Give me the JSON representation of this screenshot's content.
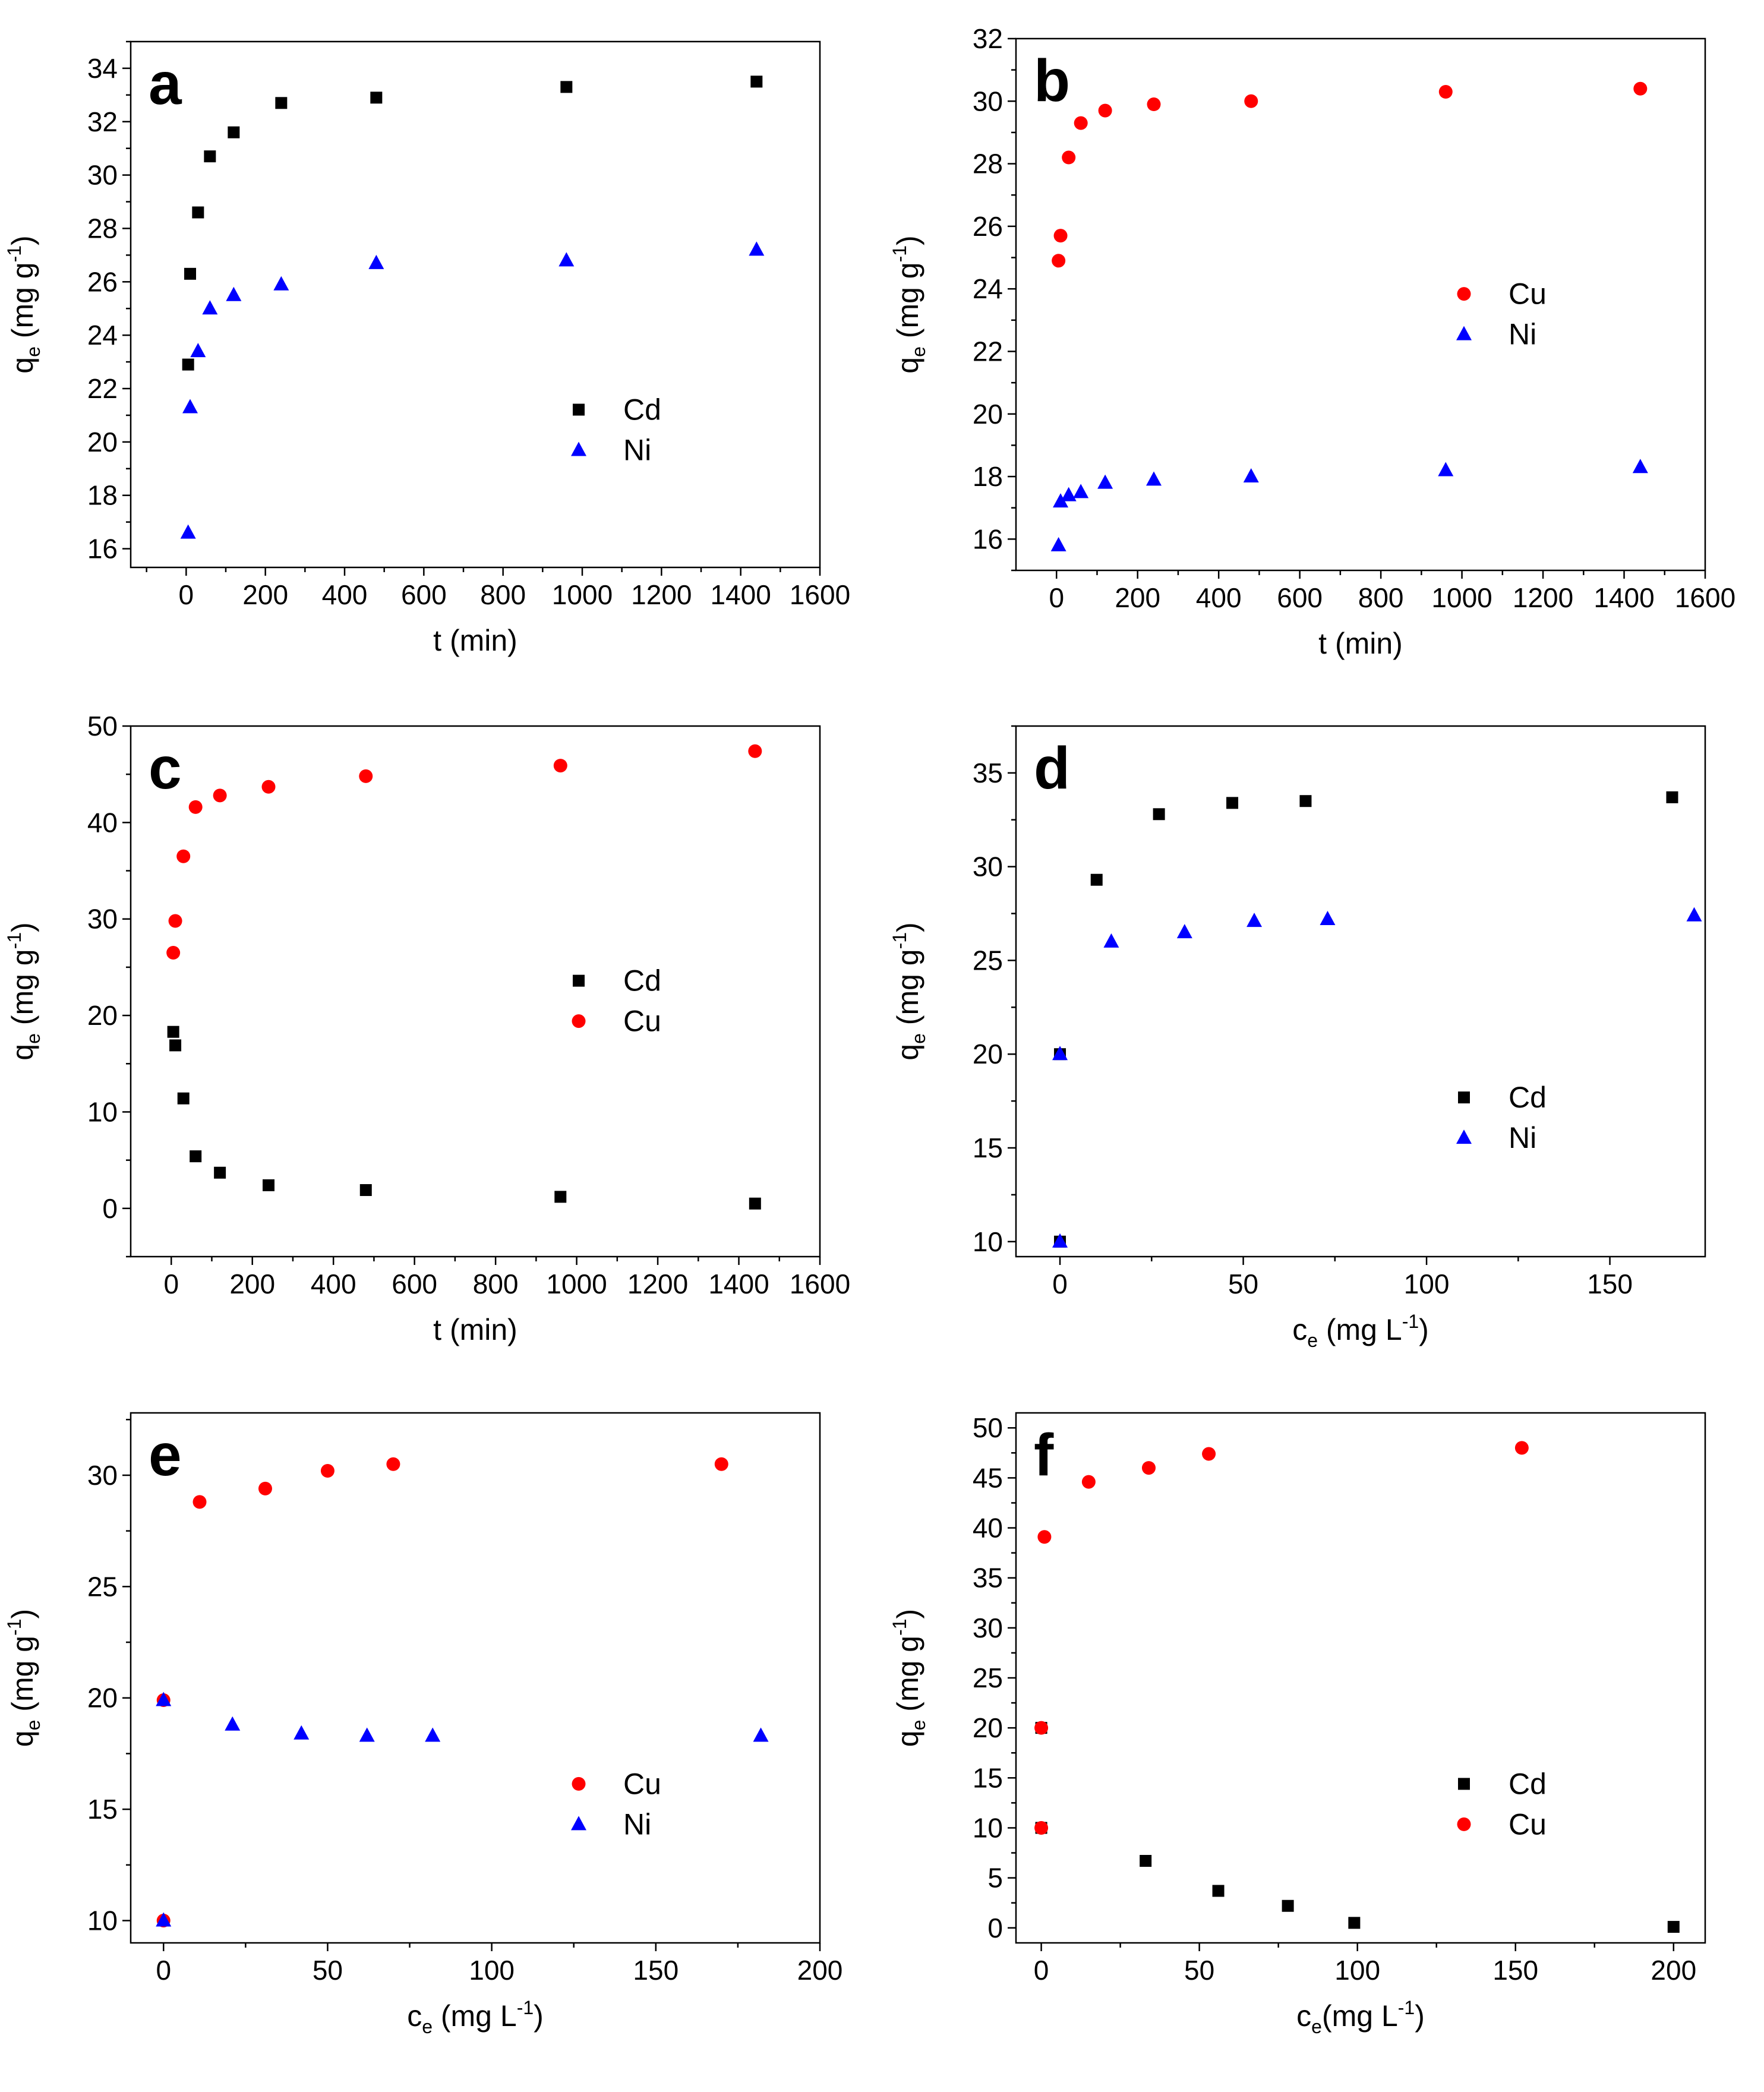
{
  "figure": {
    "colors": {
      "Cd": "#000000",
      "Ni": "#0000ff",
      "Cu": "#ff0000"
    }
  },
  "chart_data": [
    {
      "id": "a",
      "letter": "a",
      "type": "scatter",
      "xlabel": {
        "main": "t (min)",
        "sub": "",
        "suffix": "",
        "sup": "",
        "close": ""
      },
      "ylabel": {
        "main": "q",
        "sub": "e",
        "suffix": " (mg g",
        "sup": "-1",
        "close": ")"
      },
      "xlim": [
        -140,
        1600
      ],
      "ylim": [
        15.3,
        35
      ],
      "xticks": [
        0,
        200,
        400,
        600,
        800,
        1000,
        1200,
        1400,
        1600
      ],
      "yticks": [
        16,
        18,
        20,
        22,
        24,
        26,
        28,
        30,
        32,
        34
      ],
      "grid": false,
      "legend_position": "lower-right",
      "series": [
        {
          "name": "Cd",
          "marker": "square",
          "color": "#000000",
          "points": [
            [
              5,
              22.9
            ],
            [
              10,
              26.3
            ],
            [
              30,
              28.6
            ],
            [
              60,
              30.7
            ],
            [
              120,
              31.6
            ],
            [
              240,
              32.7
            ],
            [
              480,
              32.9
            ],
            [
              960,
              33.3
            ],
            [
              1440,
              33.5
            ]
          ]
        },
        {
          "name": "Ni",
          "marker": "triangle",
          "color": "#0000ff",
          "points": [
            [
              5,
              16.6
            ],
            [
              10,
              21.3
            ],
            [
              30,
              23.4
            ],
            [
              60,
              25.0
            ],
            [
              120,
              25.5
            ],
            [
              240,
              25.9
            ],
            [
              480,
              26.7
            ],
            [
              960,
              26.8
            ],
            [
              1440,
              27.2
            ]
          ]
        }
      ]
    },
    {
      "id": "b",
      "letter": "b",
      "type": "scatter",
      "xlabel": {
        "main": "t (min)",
        "sub": "",
        "suffix": "",
        "sup": "",
        "close": ""
      },
      "ylabel": {
        "main": "q",
        "sub": "e",
        "suffix": " (mg g",
        "sup": "-1",
        "close": ")"
      },
      "xlim": [
        -100,
        1600
      ],
      "ylim": [
        15.0,
        32.0
      ],
      "xticks": [
        0,
        200,
        400,
        600,
        800,
        1000,
        1200,
        1400,
        1600
      ],
      "yticks": [
        16,
        18,
        20,
        22,
        24,
        26,
        28,
        30,
        32
      ],
      "grid": false,
      "legend_position": "middle-right",
      "series": [
        {
          "name": "Cu",
          "marker": "circle",
          "color": "#ff0000",
          "points": [
            [
              5,
              24.9
            ],
            [
              10,
              25.7
            ],
            [
              30,
              28.2
            ],
            [
              60,
              29.3
            ],
            [
              120,
              29.7
            ],
            [
              240,
              29.9
            ],
            [
              480,
              30.0
            ],
            [
              960,
              30.3
            ],
            [
              1440,
              30.4
            ]
          ]
        },
        {
          "name": "Ni",
          "marker": "triangle",
          "color": "#0000ff",
          "points": [
            [
              5,
              15.8
            ],
            [
              10,
              17.2
            ],
            [
              30,
              17.4
            ],
            [
              60,
              17.5
            ],
            [
              120,
              17.8
            ],
            [
              240,
              17.9
            ],
            [
              480,
              18.0
            ],
            [
              960,
              18.2
            ],
            [
              1440,
              18.3
            ]
          ]
        }
      ]
    },
    {
      "id": "c",
      "letter": "c",
      "type": "scatter",
      "xlabel": {
        "main": "t (min)",
        "sub": "",
        "suffix": "",
        "sup": "",
        "close": ""
      },
      "ylabel": {
        "main": "q",
        "sub": "e",
        "suffix": " (mg g",
        "sup": "-1",
        "close": ")"
      },
      "xlim": [
        -100,
        1600
      ],
      "ylim": [
        -5,
        50
      ],
      "xticks": [
        0,
        200,
        400,
        600,
        800,
        1000,
        1200,
        1400,
        1600
      ],
      "yticks": [
        0,
        10,
        20,
        30,
        40,
        50
      ],
      "grid": false,
      "legend_position": "middle-right",
      "series": [
        {
          "name": "Cd",
          "marker": "square",
          "color": "#000000",
          "points": [
            [
              5,
              18.3
            ],
            [
              10,
              16.9
            ],
            [
              30,
              11.4
            ],
            [
              60,
              5.4
            ],
            [
              120,
              3.7
            ],
            [
              240,
              2.4
            ],
            [
              480,
              1.9
            ],
            [
              960,
              1.2
            ],
            [
              1440,
              0.5
            ]
          ]
        },
        {
          "name": "Cu",
          "marker": "circle",
          "color": "#ff0000",
          "points": [
            [
              5,
              26.5
            ],
            [
              10,
              29.8
            ],
            [
              30,
              36.5
            ],
            [
              60,
              41.6
            ],
            [
              120,
              42.8
            ],
            [
              240,
              43.7
            ],
            [
              480,
              44.8
            ],
            [
              960,
              45.9
            ],
            [
              1440,
              47.4
            ]
          ]
        }
      ]
    },
    {
      "id": "d",
      "letter": "d",
      "type": "scatter",
      "xlabel": {
        "main": "c",
        "sub": "e",
        "suffix": " (mg L",
        "sup": "-1",
        "close": ")"
      },
      "ylabel": {
        "main": "q",
        "sub": "e",
        "suffix": " (mg g",
        "sup": "-1",
        "close": ")"
      },
      "xlim": [
        -12,
        176
      ],
      "ylim": [
        9.2,
        37.5
      ],
      "xticks": [
        0,
        50,
        100,
        150
      ],
      "yticks": [
        10,
        15,
        20,
        25,
        30,
        35
      ],
      "grid": false,
      "legend_position": "lower-right",
      "series": [
        {
          "name": "Cd",
          "marker": "square",
          "color": "#000000",
          "points": [
            [
              0,
              10.0
            ],
            [
              0,
              20.0
            ],
            [
              10,
              29.3
            ],
            [
              27,
              32.8
            ],
            [
              47,
              33.4
            ],
            [
              67,
              33.5
            ],
            [
              167,
              33.7
            ]
          ]
        },
        {
          "name": "Ni",
          "marker": "triangle",
          "color": "#0000ff",
          "points": [
            [
              0,
              10.0
            ],
            [
              0,
              20.0
            ],
            [
              14,
              26.0
            ],
            [
              34,
              26.5
            ],
            [
              53,
              27.1
            ],
            [
              73,
              27.2
            ],
            [
              173,
              27.4
            ]
          ]
        }
      ]
    },
    {
      "id": "e",
      "letter": "e",
      "type": "scatter",
      "xlabel": {
        "main": "c",
        "sub": "e",
        "suffix": " (mg L",
        "sup": "-1",
        "close": ")"
      },
      "ylabel": {
        "main": "q",
        "sub": "e",
        "suffix": " (mg g",
        "sup": "-1",
        "close": ")"
      },
      "xlim": [
        -10,
        200
      ],
      "ylim": [
        9.0,
        32.8
      ],
      "xticks": [
        0,
        50,
        100,
        150,
        200
      ],
      "yticks": [
        10,
        15,
        20,
        25,
        30
      ],
      "grid": false,
      "legend_position": "lower-right",
      "series": [
        {
          "name": "Cu",
          "marker": "circle",
          "color": "#ff0000",
          "points": [
            [
              0,
              10.0
            ],
            [
              0,
              19.9
            ],
            [
              11,
              28.8
            ],
            [
              31,
              29.4
            ],
            [
              50,
              30.2
            ],
            [
              70,
              30.5
            ],
            [
              170,
              30.5
            ]
          ]
        },
        {
          "name": "Ni",
          "marker": "triangle",
          "color": "#0000ff",
          "points": [
            [
              0,
              10.0
            ],
            [
              0,
              19.9
            ],
            [
              21,
              18.8
            ],
            [
              42,
              18.4
            ],
            [
              62,
              18.3
            ],
            [
              82,
              18.3
            ],
            [
              182,
              18.3
            ]
          ]
        }
      ]
    },
    {
      "id": "f",
      "letter": "f",
      "type": "scatter",
      "xlabel": {
        "main": "c",
        "sub": "e",
        "suffix": "(mg L",
        "sup": "-1",
        "close": ")"
      },
      "ylabel": {
        "main": "q",
        "sub": "e",
        "suffix": " (mg g",
        "sup": "-1",
        "close": ")"
      },
      "xlim": [
        -8,
        210
      ],
      "ylim": [
        -1.5,
        51.5
      ],
      "xticks": [
        0,
        50,
        100,
        150,
        200
      ],
      "yticks": [
        0,
        5,
        10,
        15,
        20,
        25,
        30,
        35,
        40,
        45,
        50
      ],
      "grid": false,
      "legend_position": "lower-right",
      "series": [
        {
          "name": "Cd",
          "marker": "square",
          "color": "#000000",
          "points": [
            [
              0,
              10.0
            ],
            [
              0,
              20.0
            ],
            [
              33,
              6.7
            ],
            [
              56,
              3.7
            ],
            [
              78,
              2.2
            ],
            [
              99,
              0.5
            ],
            [
              200,
              0.1
            ]
          ]
        },
        {
          "name": "Cu",
          "marker": "circle",
          "color": "#ff0000",
          "points": [
            [
              0,
              10.0
            ],
            [
              0,
              20.0
            ],
            [
              1,
              39.1
            ],
            [
              15,
              44.6
            ],
            [
              34,
              46.0
            ],
            [
              53,
              47.4
            ],
            [
              152,
              48.0
            ]
          ]
        }
      ]
    }
  ]
}
